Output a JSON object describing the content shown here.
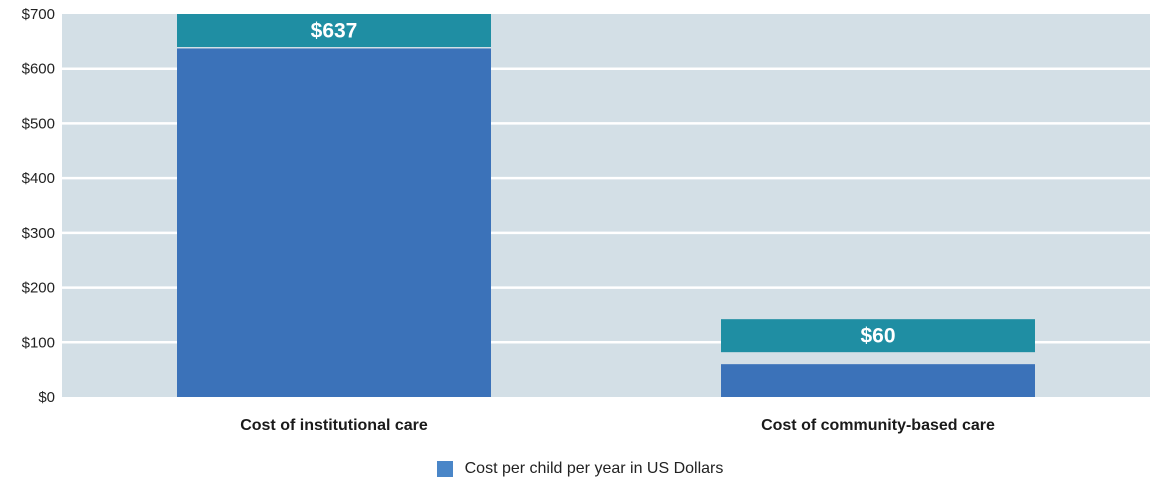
{
  "chart_data": {
    "type": "bar",
    "categories": [
      "Cost of institutional care",
      "Cost of community-based care"
    ],
    "series": [
      {
        "name": "Cost per child per year in US Dollars",
        "values": [
          637,
          60
        ]
      }
    ],
    "data_labels": [
      "$637",
      "$60"
    ],
    "y_ticks": [
      "$0",
      "$100",
      "$200",
      "$300",
      "$400",
      "$500",
      "$600",
      "$700"
    ],
    "ylim": [
      0,
      700
    ],
    "grid": true,
    "legend_position": "bottom-center",
    "colors": {
      "bar": "#3b72b9",
      "label_box": "#1f8ea3",
      "plot_background": "#d3dfe6",
      "gridline": "#ffffff",
      "legend_swatch": "#4a86c8"
    }
  }
}
